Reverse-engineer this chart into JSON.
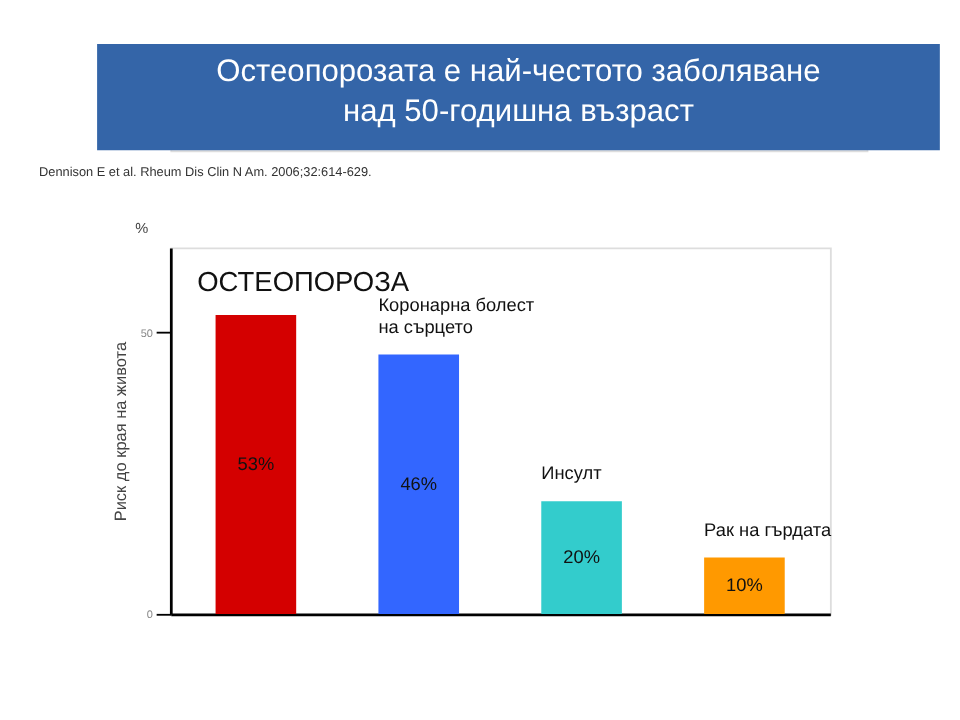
{
  "chart_data": {
    "type": "bar",
    "title": "Остеопорозата е най-честото заболяване над 50-годишна възраст",
    "ylabel": "Риск до края на живота",
    "annotations": [
      "Dennison E et al. Rheum Dis Clin N Am. 2006;32:614-629.",
      "%"
    ],
    "categories": [
      "ОСТЕОПОРОЗА",
      "Коронарна болест на сърцето",
      "Инсулт",
      "Рак на гърдата"
    ],
    "values": [
      53,
      46,
      20,
      10
    ],
    "colors": [
      "#d40000",
      "#3366ff",
      "#33cccc",
      "#ff9900"
    ],
    "value_labels": [
      "53%",
      "46%",
      "20%",
      "10%"
    ],
    "ylim": [
      0,
      65
    ],
    "yticks": [
      0,
      50
    ],
    "tick_labels": "y",
    "grid": false
  }
}
